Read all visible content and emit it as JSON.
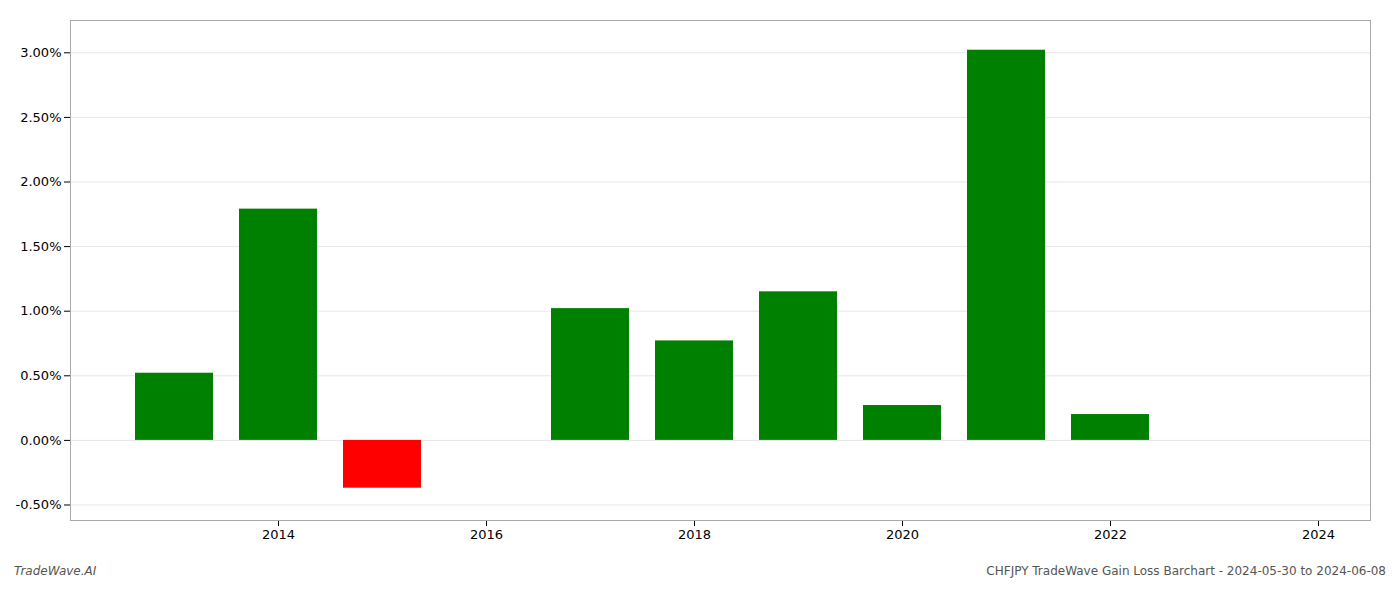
{
  "chart_data": {
    "type": "bar",
    "x": [
      2013,
      2014,
      2015,
      2017,
      2018,
      2019,
      2020,
      2021,
      2022
    ],
    "values": [
      0.52,
      1.79,
      -0.37,
      1.02,
      0.77,
      1.15,
      0.27,
      3.02,
      0.2
    ],
    "colors": [
      "#008000",
      "#008000",
      "#ff0000",
      "#008000",
      "#008000",
      "#008000",
      "#008000",
      "#008000",
      "#008000"
    ],
    "xlim": [
      2012.0,
      2024.5
    ],
    "ylim": [
      -0.62,
      3.25
    ],
    "xticks": [
      2014,
      2016,
      2018,
      2020,
      2022,
      2024
    ],
    "yticks": [
      {
        "value": -0.5,
        "label": "-0.50%"
      },
      {
        "value": 0.0,
        "label": "0.00%"
      },
      {
        "value": 0.5,
        "label": "0.50%"
      },
      {
        "value": 1.0,
        "label": "1.00%"
      },
      {
        "value": 1.5,
        "label": "1.50%"
      },
      {
        "value": 2.0,
        "label": "2.00%"
      },
      {
        "value": 2.5,
        "label": "2.50%"
      },
      {
        "value": 3.0,
        "label": "3.00%"
      }
    ],
    "grid": true,
    "annotations": [
      "TradeWave.AI",
      "CHFJPY TradeWave Gain Loss Barchart - 2024-05-30 to 2024-06-08"
    ]
  }
}
